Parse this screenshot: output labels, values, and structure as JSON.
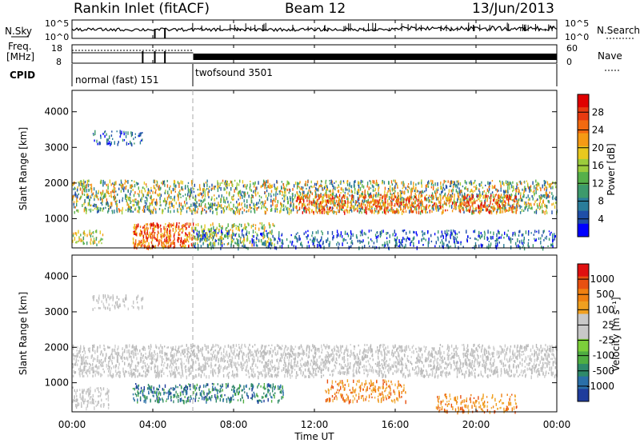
{
  "header": {
    "station": "Rankin Inlet (fitACF)",
    "beam": "Beam 12",
    "date": "13/Jun/2013"
  },
  "top_panels": {
    "nsky_label": "N.Sky",
    "nsearch_label": "N.Search",
    "freq_label": "Freq.",
    "freq_unit": "[MHz]",
    "nave_label": "Nave",
    "cpid_label": "CPID",
    "left_ticks_noise": [
      "10^5",
      "10^0"
    ],
    "right_ticks_noise": [
      "10^5",
      "10^0"
    ],
    "left_ticks_freq": [
      "18",
      "8"
    ],
    "right_ticks_nave": [
      "60",
      "0"
    ],
    "cpid_segments": [
      {
        "label": "normal (fast) 151",
        "start_h": 0,
        "end_h": 6
      },
      {
        "label": "twofsound 3501",
        "start_h": 6,
        "end_h": 24
      }
    ]
  },
  "time_axis": {
    "label": "Time UT",
    "ticks": [
      "00:00",
      "04:00",
      "08:00",
      "12:00",
      "16:00",
      "20:00",
      "00:00"
    ]
  },
  "chart_data": [
    {
      "type": "heatmap",
      "name": "power-panel",
      "ylabel": "Slant Range [km]",
      "xlabel": "Time UT",
      "xlim_hours": [
        0,
        24
      ],
      "ylim": [
        180,
        4600
      ],
      "yticks": [
        1000,
        2000,
        3000,
        4000
      ],
      "colorbar": {
        "label": "Power [dB]",
        "ticks": [
          "28",
          "24",
          "20",
          "16",
          "12",
          "8",
          "4"
        ],
        "colors": [
          "#0000ff",
          "#1f4ea8",
          "#2a7d9a",
          "#3d9a6c",
          "#56b04a",
          "#9ccc3c",
          "#e8c81e",
          "#f59a14",
          "#f26a10",
          "#e83a10",
          "#e00000"
        ],
        "range": [
          0,
          30
        ]
      },
      "scatter_bands": [
        {
          "t0": 0.0,
          "t1": 24.0,
          "r0": 1200,
          "r1": 2100,
          "density": 0.55,
          "level": "mixed"
        },
        {
          "t0": 0.0,
          "t1": 1.5,
          "r0": 300,
          "r1": 700,
          "density": 0.5,
          "level": "mid"
        },
        {
          "t0": 3.0,
          "t1": 6.0,
          "r0": 200,
          "r1": 900,
          "density": 0.85,
          "level": "high"
        },
        {
          "t0": 6.0,
          "t1": 10.0,
          "r0": 300,
          "r1": 900,
          "density": 0.5,
          "level": "mid"
        },
        {
          "t0": 6.0,
          "t1": 24.0,
          "r0": 200,
          "r1": 700,
          "density": 0.35,
          "level": "low"
        },
        {
          "t0": 11.0,
          "t1": 22.0,
          "r0": 1200,
          "r1": 1700,
          "density": 0.6,
          "level": "high"
        },
        {
          "t0": 1.0,
          "t1": 3.5,
          "r0": 3100,
          "r1": 3500,
          "density": 0.35,
          "level": "low"
        }
      ]
    },
    {
      "type": "heatmap",
      "name": "velocity-panel",
      "ylabel": "Slant Range [km]",
      "xlabel": "Time UT",
      "xlim_hours": [
        0,
        24
      ],
      "ylim": [
        180,
        4600
      ],
      "yticks": [
        1000,
        2000,
        3000,
        4000
      ],
      "colorbar": {
        "label": "Velocity [m s⁻¹]",
        "ticks": [
          "1000",
          "500",
          "100",
          "25",
          "-25",
          "-100",
          "-500",
          "-1000"
        ],
        "colors": [
          "#1f3c9c",
          "#2a6fa8",
          "#2e8a6a",
          "#4fae42",
          "#7ccf3a",
          "#c8c8c8",
          "#c8c8c8",
          "#f0a020",
          "#f08010",
          "#e85010",
          "#e01010"
        ],
        "range": [
          -1000,
          1000
        ]
      },
      "scatter_bands": [
        {
          "t0": 0.0,
          "t1": 24.0,
          "r0": 1200,
          "r1": 2100,
          "density": 0.6,
          "level": "grey"
        },
        {
          "t0": 0.0,
          "t1": 1.8,
          "r0": 300,
          "r1": 900,
          "density": 0.5,
          "level": "grey"
        },
        {
          "t0": 3.0,
          "t1": 10.5,
          "r0": 500,
          "r1": 1000,
          "density": 0.55,
          "level": "blue"
        },
        {
          "t0": 12.5,
          "t1": 16.5,
          "r0": 500,
          "r1": 1100,
          "density": 0.45,
          "level": "orange"
        },
        {
          "t0": 18.0,
          "t1": 22.0,
          "r0": 200,
          "r1": 700,
          "density": 0.4,
          "level": "orange"
        },
        {
          "t0": 1.0,
          "t1": 3.5,
          "r0": 3100,
          "r1": 3500,
          "density": 0.35,
          "level": "grey"
        }
      ]
    }
  ]
}
